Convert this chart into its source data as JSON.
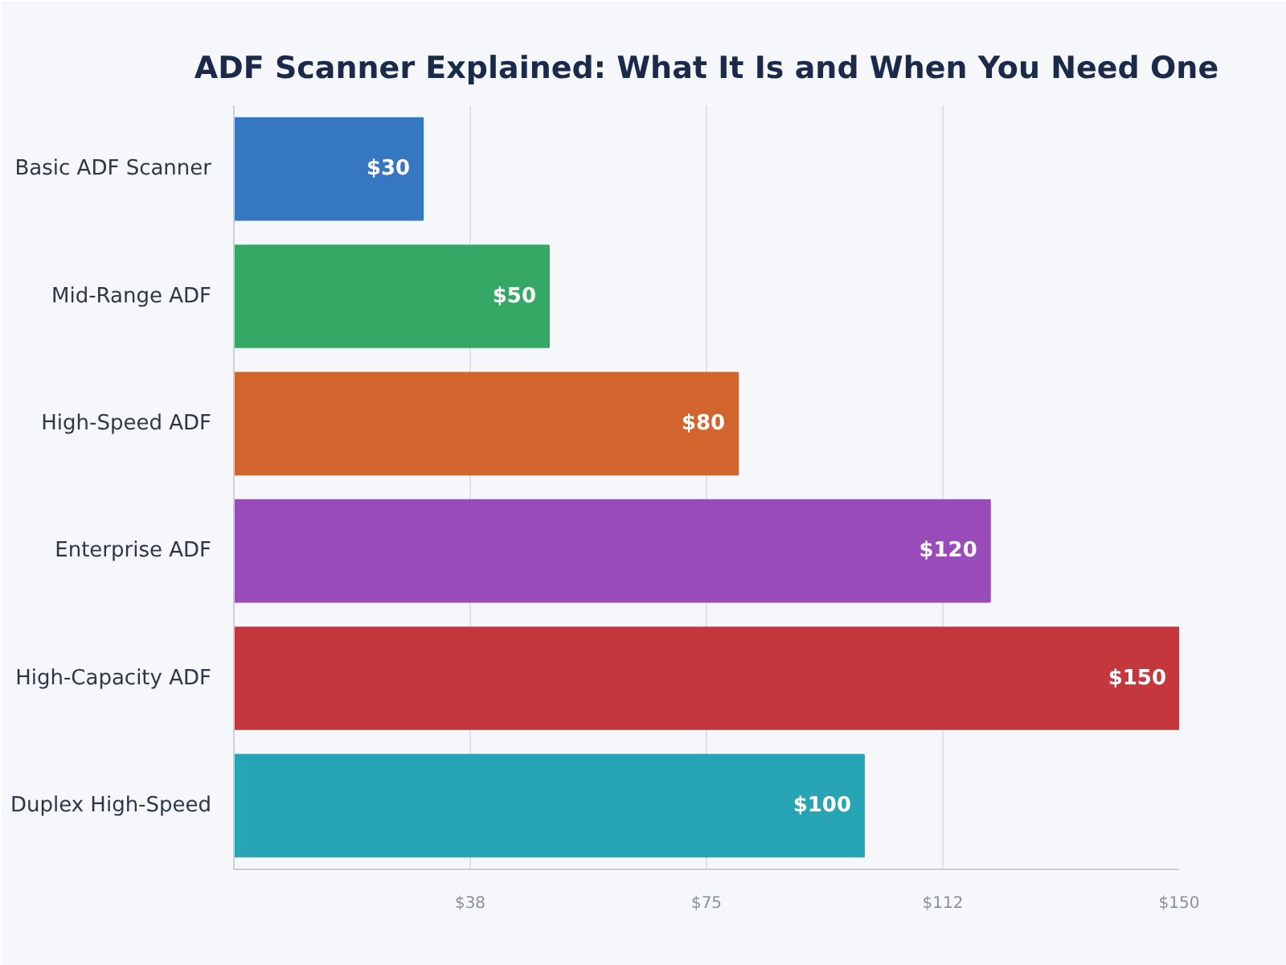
{
  "chart_data": {
    "type": "bar",
    "title": "ADF Scanner Explained: What It Is and When You Need One",
    "orientation": "horizontal",
    "categories": [
      "Basic ADF Scanner",
      "Mid-Range ADF",
      "High-Speed ADF",
      "Enterprise ADF",
      "High-Capacity ADF",
      "Duplex High-Speed"
    ],
    "values": [
      30,
      50,
      80,
      120,
      150,
      100
    ],
    "colors": [
      "#3577c0",
      "#35a866",
      "#d2652e",
      "#9a4bba",
      "#c4373d",
      "#27a5b5"
    ],
    "value_labels": [
      "$30",
      "$50",
      "$80",
      "$120",
      "$150",
      "$100"
    ],
    "xlim": [
      0,
      150
    ],
    "xticks": [
      {
        "value": 37.5,
        "label": "$38"
      },
      {
        "value": 75,
        "label": "$75"
      },
      {
        "value": 112.5,
        "label": "$112"
      },
      {
        "value": 150,
        "label": "$150"
      }
    ],
    "grid": "x"
  }
}
